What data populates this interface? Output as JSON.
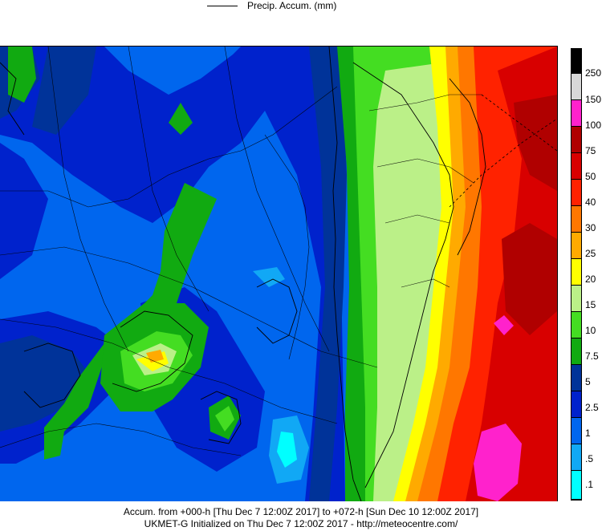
{
  "legend": {
    "series_label": "Precip. Accum. (mm)"
  },
  "colorbar": {
    "levels": [
      "250",
      "150",
      "100",
      "75",
      "50",
      "40",
      "30",
      "25",
      "20",
      "15",
      "10",
      "7.5",
      "5",
      "2.5",
      "1",
      ".5",
      ".1"
    ],
    "colors": [
      "#000000",
      "#d8d8d8",
      "#ff22cc",
      "#b00000",
      "#d80000",
      "#ff2200",
      "#ff7700",
      "#ffaa00",
      "#ffff00",
      "#bbf088",
      "#44dd22",
      "#11aa11",
      "#003399",
      "#0022cc",
      "#0066ee",
      "#11a8f5",
      "#00ffff",
      "#ffffff"
    ]
  },
  "footer": {
    "line1": "Accum. from +000-h [Thu Dec 7 12:00Z 2017] to +072-h [Sun Dec 10 12:00Z 2017]",
    "line2": "UKMET-G Initialized on Thu Dec 7 12:00Z 2017 - http://meteocentre.com/"
  }
}
